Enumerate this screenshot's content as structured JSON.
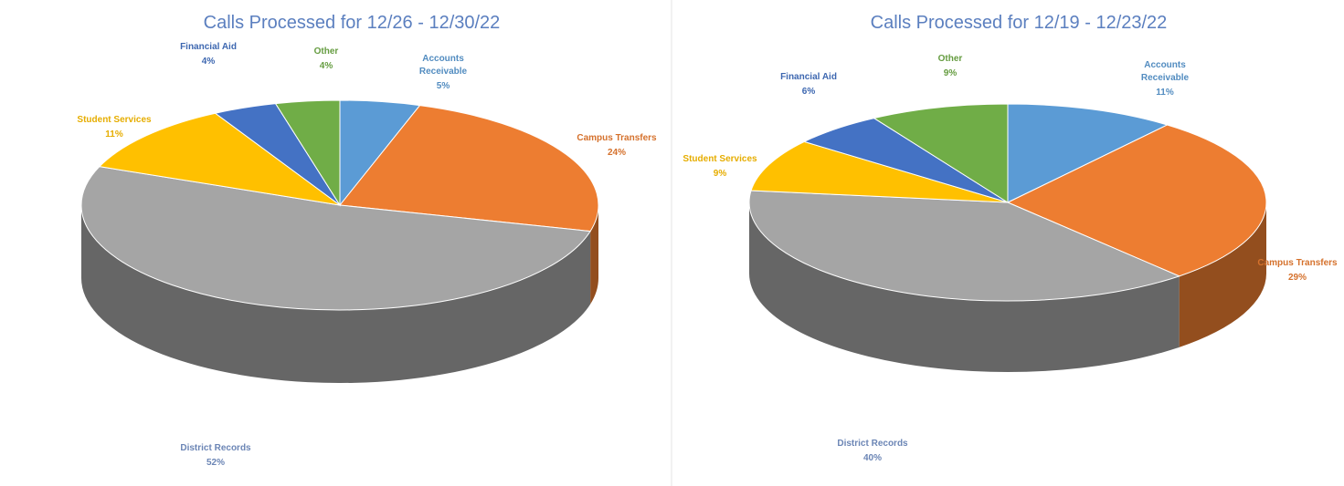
{
  "chart_data": [
    {
      "type": "pie3d",
      "title": "Calls Processed for 12/26 - 12/30/22",
      "categories": [
        "Accounts Receivable",
        "Campus Transfers",
        "District Records",
        "Student Services",
        "Financial Aid",
        "Other"
      ],
      "values": [
        5,
        24,
        52,
        11,
        4,
        4
      ],
      "value_labels": [
        "5%",
        "24%",
        "52%",
        "11%",
        "4%",
        "4%"
      ],
      "colors": [
        "#5b9bd5",
        "#ed7d31",
        "#a5a5a5",
        "#ffc000",
        "#4472c4",
        "#70ad47"
      ]
    },
    {
      "type": "pie3d",
      "title": "Calls Processed for 12/19 - 12/23/22",
      "categories": [
        "Accounts Receivable",
        "Campus Transfers",
        "District Records",
        "Student Services",
        "Financial Aid",
        "Other"
      ],
      "values": [
        11,
        29,
        40,
        9,
        6,
        9
      ],
      "value_labels": [
        "11%",
        "29%",
        "40%",
        "9%",
        "6%",
        "9%"
      ],
      "colors": [
        "#5b9bd5",
        "#ed7d31",
        "#a5a5a5",
        "#ffc000",
        "#4472c4",
        "#70ad47"
      ]
    }
  ]
}
